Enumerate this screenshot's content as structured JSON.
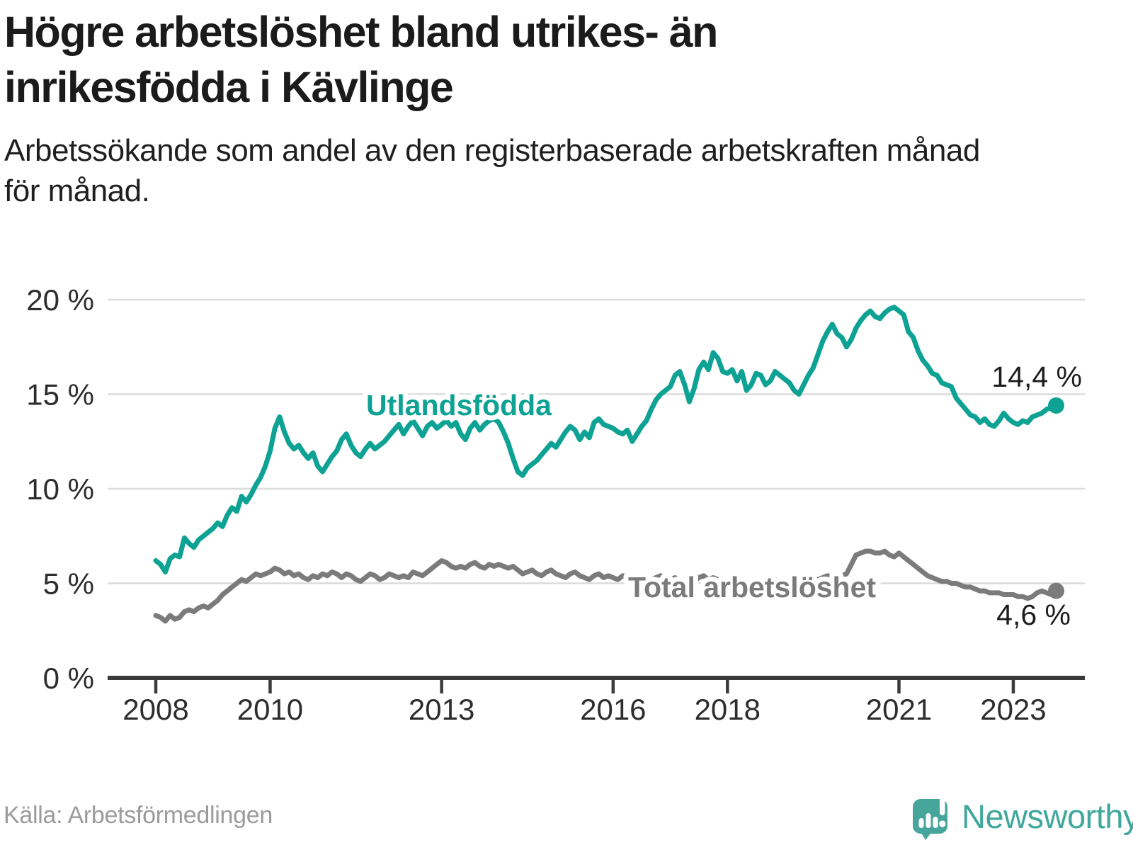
{
  "title": {
    "line1": "Högre arbetslöshet bland utrikes- än",
    "line2": "inrikesfödda i Kävlinge"
  },
  "subtitle": {
    "line1": "Arbetssökande som andel av den registerbaserade arbetskraften månad",
    "line2": "för månad."
  },
  "source": "Källa: Arbetsförmedlingen",
  "branding": {
    "name": "Newsworthy",
    "icon": "newsworthy-speech-bubble-bar-chart-icon",
    "icon_color": "#46a69b",
    "wordmark_color": "#3fa79b"
  },
  "colors": {
    "series_foreign_born": "#0da294",
    "series_total": "#7b7b7b",
    "grid": "#dbdbdb",
    "axis": "#3a3a3a",
    "axis_text": "#2d2d2d",
    "end_label_text": "#1d1d1d",
    "background": "#ffffff"
  },
  "chart_data": {
    "type": "line",
    "title": "Högre arbetslöshet bland utrikes- än inrikesfödda i Kävlinge",
    "subtitle": "Arbetssökande som andel av den registerbaserade arbetskraften månad för månad.",
    "x_start": "2008-01",
    "x_end": "2023-10",
    "x_frequency": "monthly",
    "x_tick_years": [
      2008,
      2010,
      2013,
      2016,
      2018,
      2021,
      2023
    ],
    "x_tick_labels": [
      "2008",
      "2010",
      "2013",
      "2016",
      "2018",
      "2021",
      "2023"
    ],
    "y_ticks": [
      0,
      5,
      10,
      15,
      20
    ],
    "y_tick_labels": [
      "0 %",
      "5 %",
      "10 %",
      "15 %",
      "20 %"
    ],
    "ylim": [
      0,
      21
    ],
    "grid": "horizontal",
    "legend_position": "inline-labels",
    "series": [
      {
        "name": "Utlandsfödda",
        "color": "#0da294",
        "end_value": 14.4,
        "end_label": "14,4 %",
        "values": [
          6.2,
          6.0,
          5.6,
          6.3,
          6.5,
          6.4,
          7.4,
          7.1,
          6.9,
          7.3,
          7.5,
          7.7,
          7.9,
          8.2,
          8.0,
          8.6,
          9.0,
          8.8,
          9.6,
          9.3,
          9.7,
          10.2,
          10.6,
          11.2,
          12.0,
          13.2,
          13.8,
          13.0,
          12.4,
          12.1,
          12.3,
          11.9,
          11.6,
          11.9,
          11.2,
          10.9,
          11.3,
          11.7,
          12.0,
          12.6,
          12.9,
          12.3,
          11.9,
          11.7,
          12.1,
          12.4,
          12.1,
          12.3,
          12.5,
          12.8,
          13.1,
          13.4,
          12.9,
          13.3,
          13.6,
          13.2,
          12.8,
          13.3,
          13.5,
          13.2,
          13.4,
          13.6,
          13.3,
          13.5,
          12.9,
          12.6,
          13.2,
          13.5,
          13.1,
          13.4,
          13.6,
          13.7,
          13.5,
          13.0,
          12.4,
          11.6,
          10.9,
          10.7,
          11.1,
          11.3,
          11.5,
          11.8,
          12.1,
          12.4,
          12.2,
          12.6,
          13.0,
          13.3,
          13.1,
          12.6,
          13.0,
          12.7,
          13.5,
          13.7,
          13.4,
          13.3,
          13.2,
          13.0,
          12.9,
          13.1,
          12.5,
          12.9,
          13.3,
          13.6,
          14.2,
          14.7,
          15.0,
          15.2,
          15.4,
          16.0,
          16.2,
          15.5,
          14.6,
          15.3,
          16.3,
          16.7,
          16.3,
          17.2,
          16.9,
          16.2,
          16.1,
          16.3,
          15.7,
          16.2,
          15.2,
          15.5,
          16.1,
          16.0,
          15.5,
          15.7,
          16.2,
          16.0,
          15.8,
          15.6,
          15.2,
          15.0,
          15.5,
          16.0,
          16.4,
          17.1,
          17.8,
          18.3,
          18.7,
          18.2,
          18.0,
          17.5,
          17.9,
          18.5,
          18.9,
          19.2,
          19.4,
          19.1,
          19.0,
          19.3,
          19.5,
          19.6,
          19.4,
          19.2,
          18.3,
          18.0,
          17.3,
          16.8,
          16.5,
          16.1,
          16.0,
          15.6,
          15.5,
          15.4,
          14.8,
          14.5,
          14.2,
          13.9,
          13.8,
          13.5,
          13.7,
          13.4,
          13.3,
          13.6,
          14.0,
          13.7,
          13.5,
          13.4,
          13.6,
          13.5,
          13.8,
          13.9,
          14.0,
          14.2,
          14.3,
          14.4
        ]
      },
      {
        "name": "Total arbetslöshet",
        "color": "#7b7b7b",
        "end_value": 4.6,
        "end_label": "4,6 %",
        "values": [
          3.3,
          3.2,
          3.0,
          3.3,
          3.1,
          3.2,
          3.5,
          3.6,
          3.5,
          3.7,
          3.8,
          3.7,
          3.9,
          4.1,
          4.4,
          4.6,
          4.8,
          5.0,
          5.2,
          5.1,
          5.3,
          5.5,
          5.4,
          5.5,
          5.6,
          5.8,
          5.7,
          5.5,
          5.6,
          5.4,
          5.5,
          5.3,
          5.2,
          5.4,
          5.3,
          5.5,
          5.4,
          5.6,
          5.5,
          5.3,
          5.5,
          5.4,
          5.2,
          5.1,
          5.3,
          5.5,
          5.4,
          5.2,
          5.3,
          5.5,
          5.4,
          5.3,
          5.4,
          5.3,
          5.6,
          5.5,
          5.4,
          5.6,
          5.8,
          6.0,
          6.2,
          6.1,
          5.9,
          5.8,
          5.9,
          5.8,
          6.0,
          6.1,
          5.9,
          5.8,
          6.0,
          5.9,
          6.0,
          5.9,
          5.8,
          5.9,
          5.7,
          5.5,
          5.6,
          5.7,
          5.5,
          5.4,
          5.6,
          5.7,
          5.5,
          5.4,
          5.3,
          5.5,
          5.6,
          5.4,
          5.3,
          5.2,
          5.4,
          5.5,
          5.3,
          5.4,
          5.3,
          5.2,
          5.4,
          5.3,
          5.1,
          5.2,
          5.4,
          5.3,
          5.2,
          5.3,
          5.4,
          5.3,
          5.2,
          5.3,
          5.1,
          5.2,
          5.0,
          5.1,
          5.3,
          5.4,
          5.2,
          5.3,
          5.2,
          5.1,
          5.2,
          5.1,
          5.0,
          5.1,
          4.9,
          5.0,
          5.2,
          5.1,
          5.0,
          5.1,
          5.2,
          5.1,
          5.0,
          5.1,
          4.9,
          5.0,
          5.1,
          5.2,
          5.3,
          5.2,
          5.3,
          5.4,
          5.3,
          5.4,
          5.4,
          5.5,
          6.0,
          6.5,
          6.6,
          6.7,
          6.7,
          6.6,
          6.6,
          6.7,
          6.5,
          6.4,
          6.6,
          6.4,
          6.2,
          6.0,
          5.8,
          5.6,
          5.4,
          5.3,
          5.2,
          5.1,
          5.1,
          5.0,
          5.0,
          4.9,
          4.8,
          4.8,
          4.7,
          4.6,
          4.6,
          4.5,
          4.5,
          4.5,
          4.4,
          4.4,
          4.4,
          4.3,
          4.3,
          4.2,
          4.3,
          4.5,
          4.6,
          4.5,
          4.4,
          4.6
        ]
      }
    ]
  }
}
